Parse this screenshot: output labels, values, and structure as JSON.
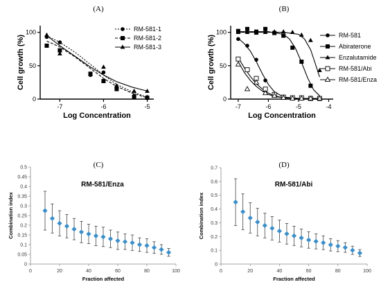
{
  "panels": {
    "a": "(A)",
    "b": "(B)",
    "c": "(C)",
    "d": "(D)"
  },
  "chart_data": [
    {
      "type": "line",
      "xlabel": "Log Concentration",
      "ylabel": "Cell growth (%)",
      "xlim": [
        -7.45,
        -4.85
      ],
      "ylim": [
        0,
        110
      ],
      "xticks": [
        -7,
        -6,
        -5
      ],
      "yticks": [
        0,
        50,
        100
      ],
      "legend": "top-right",
      "series": [
        {
          "name": "RM-581-1",
          "marker": "circle",
          "dash": "2,2",
          "x": [
            -7.3,
            -7,
            -6.3,
            -6,
            -5.7,
            -5.3,
            -5
          ],
          "y": [
            93,
            85,
            36,
            40,
            18,
            5,
            3
          ]
        },
        {
          "name": "RM-581-2",
          "marker": "square",
          "dash": "4,2",
          "x": [
            -7.3,
            -7,
            -6.3,
            -6,
            -5.7,
            -5.3,
            -5
          ],
          "y": [
            80,
            73,
            38,
            27,
            15,
            3,
            2
          ]
        },
        {
          "name": "RM-581-3",
          "marker": "triangle",
          "dash": "",
          "x": [
            -7.3,
            -7,
            -6.3,
            -6,
            -5.7,
            -5.3,
            -5
          ],
          "y": [
            96,
            68,
            37,
            48,
            20,
            12,
            12
          ]
        }
      ],
      "fits": [
        {
          "dash": "2,2",
          "x": [
            -7.3,
            -7,
            -6.65,
            -6.3,
            -6,
            -5.7,
            -5.35,
            -5
          ],
          "y": [
            95,
            85,
            70,
            52,
            36,
            22,
            11,
            3
          ]
        },
        {
          "dash": "4,2",
          "x": [
            -7.3,
            -7,
            -6.65,
            -6.3,
            -6,
            -5.7,
            -5.35,
            -5
          ],
          "y": [
            87,
            78,
            63,
            46,
            31,
            19,
            9,
            2
          ]
        },
        {
          "dash": "",
          "x": [
            -7.3,
            -7,
            -6.65,
            -6.3,
            -6,
            -5.7,
            -5.35,
            -5
          ],
          "y": [
            95,
            80,
            64,
            48,
            36,
            26,
            18,
            12
          ]
        }
      ]
    },
    {
      "type": "line",
      "xlabel": "Log Concentration",
      "ylabel": "Cell growth (%)",
      "xlim": [
        -7.25,
        -3.85
      ],
      "ylim": [
        0,
        110
      ],
      "xticks": [
        -7,
        -6,
        -5,
        -4
      ],
      "yticks": [
        0,
        50,
        100
      ],
      "legend": "right",
      "series": [
        {
          "name": "RM-581",
          "marker": "circle",
          "x": [
            -7,
            -6.7,
            -6.4,
            -6.1,
            -5.8,
            -5.5,
            -5.2,
            -4.9,
            -4.6,
            -4.3
          ],
          "y": [
            90,
            80,
            59,
            28,
            7,
            2,
            1,
            1,
            1,
            1
          ]
        },
        {
          "name": "Abiraterone",
          "marker": "square",
          "x": [
            -7,
            -6.7,
            -6.4,
            -6.1,
            -5.8,
            -5.5,
            -5.2,
            -4.9,
            -4.6,
            -4.3
          ],
          "y": [
            102,
            105,
            101,
            105,
            99,
            95,
            77,
            56,
            20,
            1
          ]
        },
        {
          "name": "Enzalutamide",
          "marker": "triangle",
          "x": [
            -7,
            -6.7,
            -6.4,
            -6.1,
            -5.8,
            -5.5,
            -5.2,
            -4.9,
            -4.6,
            -4.3
          ],
          "y": [
            100,
            100,
            99,
            100,
            101,
            101,
            100,
            96,
            88,
            43
          ]
        },
        {
          "name": "RM-581/Abi",
          "marker": "square-open",
          "x": [
            -7,
            -6.7,
            -6.4,
            -6.1,
            -5.8,
            -5.5,
            -5.2,
            -4.9,
            -4.6,
            -4.3
          ],
          "y": [
            60,
            44,
            31,
            15,
            7,
            3,
            2,
            2,
            1,
            1
          ]
        },
        {
          "name": "RM-581/Enza",
          "marker": "triangle-open",
          "x": [
            -7,
            -6.7,
            -6.4,
            -6.1,
            -5.8,
            -5.5,
            -5.2,
            -4.9,
            -4.6,
            -4.3
          ],
          "y": [
            52,
            15,
            25,
            9,
            5,
            2,
            1,
            1,
            1,
            1
          ]
        }
      ],
      "fits": [
        {
          "x": [
            -7,
            -6.8,
            -6.6,
            -6.4,
            -6.2,
            -6.0,
            -5.8,
            -5.5,
            -5.0,
            -4.3
          ],
          "y": [
            91,
            83,
            72,
            56,
            38,
            22,
            11,
            3,
            1,
            1
          ]
        },
        {
          "x": [
            -7,
            -6.0,
            -5.5,
            -5.3,
            -5.1,
            -4.9,
            -4.7,
            -4.5,
            -4.3
          ],
          "y": [
            101,
            101,
            97,
            90,
            76,
            55,
            32,
            14,
            5
          ]
        },
        {
          "x": [
            -7,
            -5.5,
            -5.0,
            -4.8,
            -4.6,
            -4.45,
            -4.3
          ],
          "y": [
            100,
            100,
            97,
            90,
            74,
            54,
            33
          ]
        },
        {
          "x": [
            -7,
            -6.8,
            -6.6,
            -6.4,
            -6.2,
            -6.0,
            -5.8,
            -5.5,
            -5.0,
            -4.3
          ],
          "y": [
            62,
            47,
            34,
            23,
            15,
            9,
            5,
            2,
            1,
            1
          ]
        },
        {
          "x": [
            -7,
            -6.8,
            -6.6,
            -6.4,
            -6.2,
            -6.0,
            -5.8,
            -5.5,
            -5.0,
            -4.3
          ],
          "y": [
            56,
            40,
            28,
            19,
            12,
            7,
            4,
            2,
            1,
            1
          ]
        }
      ]
    },
    {
      "type": "scatter",
      "title": "RM-581/Enza",
      "xlabel": "Fraction affected",
      "ylabel": "Combination index",
      "xlim": [
        0,
        100
      ],
      "ylim": [
        0,
        0.5
      ],
      "xticks": [
        0,
        20,
        40,
        60,
        80,
        100
      ],
      "yticks": [
        0,
        0.05,
        0.1,
        0.15,
        0.2,
        0.25,
        0.3,
        0.35,
        0.4,
        0.45,
        0.5
      ],
      "color": "#3d8fc9",
      "x": [
        10,
        15,
        20,
        25,
        30,
        35,
        40,
        45,
        50,
        55,
        60,
        65,
        70,
        75,
        80,
        85,
        90,
        95
      ],
      "y": [
        0.275,
        0.235,
        0.21,
        0.195,
        0.18,
        0.165,
        0.155,
        0.145,
        0.14,
        0.13,
        0.12,
        0.115,
        0.11,
        0.1,
        0.095,
        0.085,
        0.075,
        0.06
      ],
      "err": [
        0.1,
        0.075,
        0.065,
        0.06,
        0.055,
        0.055,
        0.05,
        0.05,
        0.05,
        0.045,
        0.045,
        0.04,
        0.04,
        0.035,
        0.035,
        0.03,
        0.025,
        0.02
      ]
    },
    {
      "type": "scatter",
      "title": "RM-581/Abi",
      "xlabel": "Fraction affected",
      "ylabel": "Combination index",
      "xlim": [
        0,
        100
      ],
      "ylim": [
        0,
        0.7
      ],
      "xticks": [
        0,
        20,
        40,
        60,
        80,
        100
      ],
      "yticks": [
        0,
        0.1,
        0.2,
        0.3,
        0.4,
        0.5,
        0.6,
        0.7
      ],
      "color": "#3d8fc9",
      "x": [
        10,
        15,
        20,
        25,
        30,
        35,
        40,
        45,
        50,
        55,
        60,
        65,
        70,
        75,
        80,
        85,
        90,
        95
      ],
      "y": [
        0.45,
        0.38,
        0.335,
        0.305,
        0.28,
        0.26,
        0.24,
        0.22,
        0.205,
        0.19,
        0.175,
        0.165,
        0.155,
        0.14,
        0.13,
        0.12,
        0.1,
        0.08
      ],
      "err": [
        0.17,
        0.13,
        0.11,
        0.1,
        0.09,
        0.085,
        0.08,
        0.075,
        0.07,
        0.065,
        0.06,
        0.055,
        0.05,
        0.045,
        0.04,
        0.035,
        0.03,
        0.025
      ]
    }
  ]
}
